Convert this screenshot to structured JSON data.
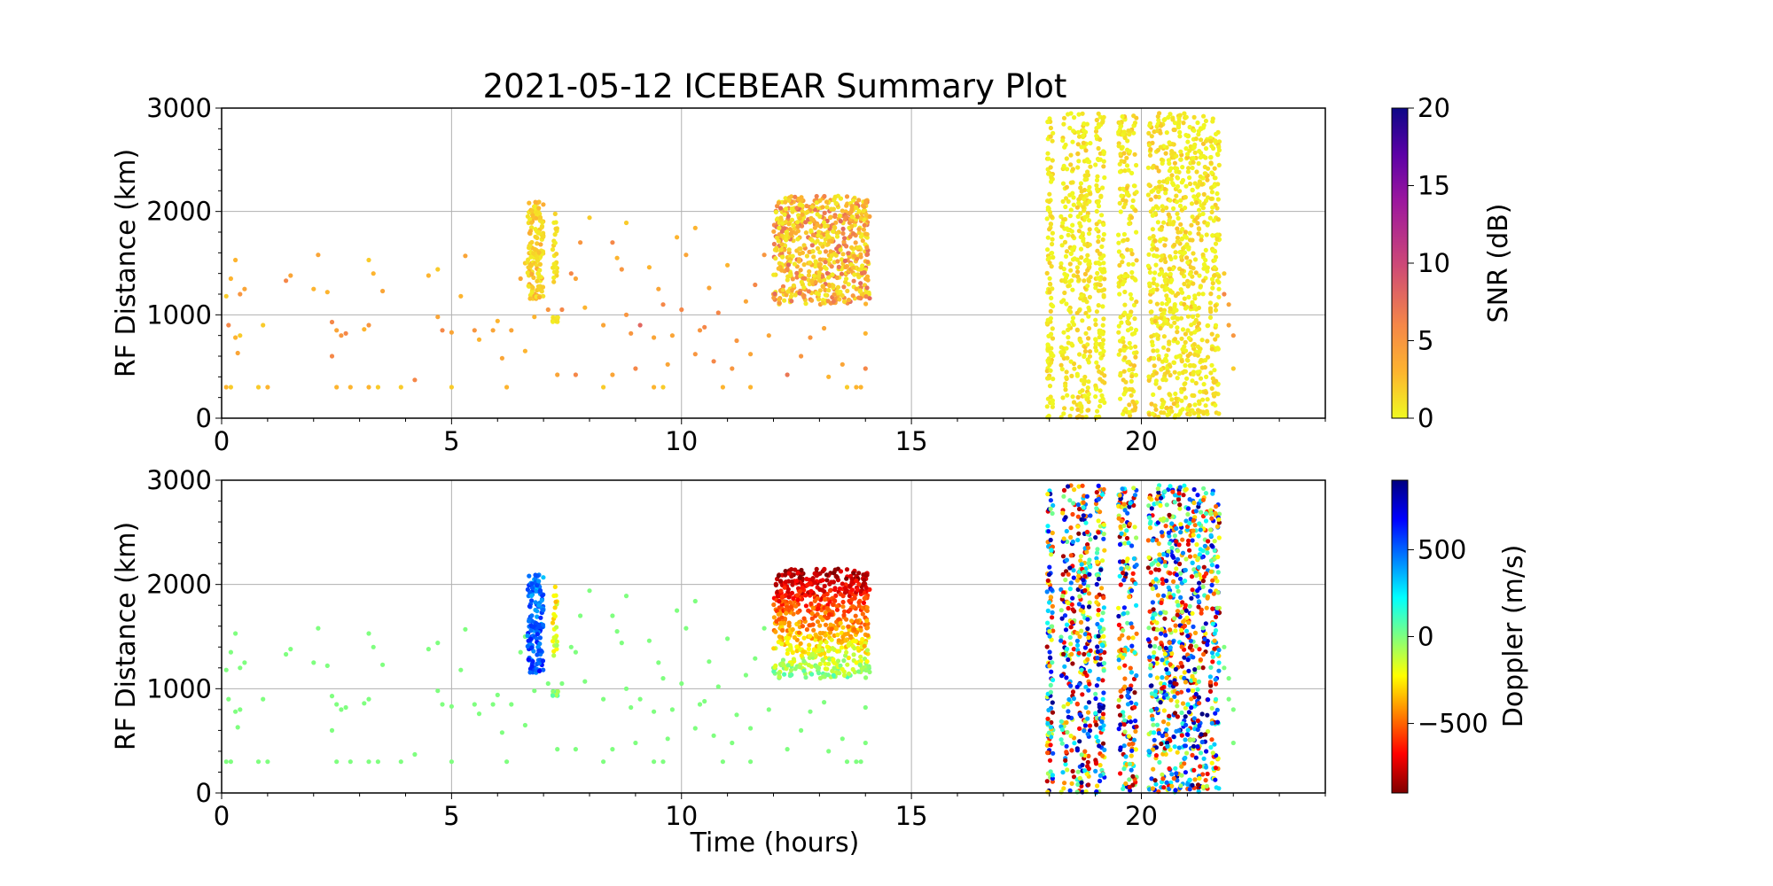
{
  "chart_data": [
    {
      "type": "scatter",
      "title": "2021-05-12 ICEBEAR Summary Plot",
      "xlabel": "",
      "ylabel": "RF Distance (km)",
      "xlim": [
        0,
        24
      ],
      "ylim": [
        0,
        3000
      ],
      "xticks": [
        0,
        5,
        10,
        15,
        20
      ],
      "yticks": [
        0,
        1000,
        2000,
        3000
      ],
      "grid": true,
      "color_by": "snr_db",
      "colorbar": {
        "label": "SNR (dB)",
        "range": [
          0,
          20
        ],
        "ticks": [
          0,
          5,
          10,
          15,
          20
        ],
        "colormap": "plasma_r"
      }
    },
    {
      "type": "scatter",
      "title": "",
      "xlabel": "Time (hours)",
      "ylabel": "RF Distance (km)",
      "xlim": [
        0,
        24
      ],
      "ylim": [
        0,
        3000
      ],
      "xticks": [
        0,
        5,
        10,
        15,
        20
      ],
      "yticks": [
        0,
        1000,
        2000,
        3000
      ],
      "grid": true,
      "color_by": "doppler_m_s",
      "colorbar": {
        "label": "Doppler (m/s)",
        "range": [
          -900,
          900
        ],
        "ticks": [
          -500,
          0,
          500
        ],
        "colormap": "jet_r"
      }
    }
  ],
  "observations": {
    "sparse_points_doppler_m_s": 0,
    "sparse_points": [
      [
        0.1,
        300,
        3
      ],
      [
        0.2,
        300,
        2
      ],
      [
        0.1,
        1180,
        2
      ],
      [
        0.15,
        900,
        6
      ],
      [
        0.2,
        1350,
        3
      ],
      [
        0.3,
        1530,
        3
      ],
      [
        0.4,
        1200,
        5
      ],
      [
        0.5,
        1250,
        4
      ],
      [
        0.3,
        780,
        3
      ],
      [
        0.35,
        630,
        4
      ],
      [
        0.4,
        800,
        2
      ],
      [
        0.8,
        300,
        2
      ],
      [
        1.0,
        300,
        3
      ],
      [
        0.9,
        900,
        2
      ],
      [
        1.4,
        1330,
        6
      ],
      [
        1.5,
        1380,
        4
      ],
      [
        2.0,
        1250,
        3
      ],
      [
        2.1,
        1580,
        4
      ],
      [
        2.3,
        1220,
        3
      ],
      [
        2.4,
        930,
        6
      ],
      [
        2.5,
        850,
        4
      ],
      [
        2.6,
        800,
        5
      ],
      [
        2.7,
        820,
        6
      ],
      [
        2.4,
        600,
        6
      ],
      [
        2.5,
        300,
        3
      ],
      [
        2.8,
        300,
        3
      ],
      [
        3.1,
        860,
        3
      ],
      [
        3.2,
        900,
        5
      ],
      [
        3.2,
        1530,
        2
      ],
      [
        3.3,
        1400,
        3
      ],
      [
        3.5,
        1230,
        4
      ],
      [
        3.2,
        300,
        3
      ],
      [
        3.4,
        300,
        2
      ],
      [
        3.9,
        300,
        2
      ],
      [
        4.2,
        370,
        6
      ],
      [
        4.5,
        1380,
        3
      ],
      [
        4.7,
        1440,
        2
      ],
      [
        4.7,
        980,
        4
      ],
      [
        4.8,
        850,
        6
      ],
      [
        5.0,
        830,
        4
      ],
      [
        5.0,
        300,
        2
      ],
      [
        5.3,
        1570,
        4
      ],
      [
        5.2,
        1180,
        3
      ],
      [
        5.5,
        850,
        5
      ],
      [
        5.6,
        760,
        3
      ],
      [
        5.9,
        850,
        4
      ],
      [
        6.0,
        940,
        3
      ],
      [
        6.1,
        580,
        4
      ],
      [
        6.2,
        300,
        3
      ],
      [
        6.3,
        850,
        4
      ],
      [
        6.5,
        1350,
        4
      ],
      [
        6.6,
        1500,
        2
      ],
      [
        6.6,
        650,
        3
      ],
      [
        7.1,
        1050,
        5
      ],
      [
        7.4,
        1050,
        6
      ],
      [
        7.6,
        1400,
        6
      ],
      [
        7.7,
        1350,
        4
      ],
      [
        7.8,
        1700,
        5
      ],
      [
        7.9,
        1070,
        3
      ],
      [
        8.0,
        1940,
        2
      ],
      [
        8.3,
        900,
        4
      ],
      [
        8.5,
        1700,
        6
      ],
      [
        8.6,
        1550,
        3
      ],
      [
        8.7,
        1440,
        5
      ],
      [
        8.8,
        1890,
        2
      ],
      [
        8.8,
        1000,
        5
      ],
      [
        9.1,
        900,
        8
      ],
      [
        9.3,
        1460,
        3
      ],
      [
        9.5,
        1250,
        4
      ],
      [
        9.6,
        1100,
        6
      ],
      [
        9.8,
        800,
        4
      ],
      [
        9.9,
        1750,
        3
      ],
      [
        10.0,
        1050,
        6
      ],
      [
        10.1,
        1580,
        4
      ],
      [
        10.3,
        1840,
        3
      ],
      [
        10.4,
        850,
        5
      ],
      [
        10.6,
        1260,
        4
      ],
      [
        10.8,
        1020,
        6
      ],
      [
        11.0,
        1480,
        3
      ],
      [
        11.2,
        750,
        5
      ],
      [
        11.4,
        1130,
        4
      ],
      [
        11.6,
        1290,
        6
      ],
      [
        11.8,
        1580,
        5
      ],
      [
        12.0,
        1200,
        4
      ],
      [
        8.3,
        300,
        2
      ],
      [
        9.4,
        300,
        3
      ],
      [
        9.6,
        300,
        2
      ],
      [
        10.9,
        300,
        3
      ],
      [
        11.5,
        300,
        3
      ],
      [
        13.6,
        300,
        2
      ],
      [
        13.8,
        300,
        3
      ],
      [
        13.9,
        300,
        3
      ],
      [
        8.5,
        420,
        4
      ],
      [
        9.0,
        480,
        6
      ],
      [
        9.7,
        520,
        4
      ],
      [
        10.3,
        620,
        5
      ],
      [
        10.7,
        550,
        6
      ],
      [
        11.1,
        480,
        5
      ],
      [
        11.5,
        620,
        4
      ],
      [
        12.3,
        420,
        7
      ],
      [
        12.6,
        600,
        5
      ],
      [
        13.2,
        400,
        3
      ],
      [
        13.5,
        520,
        4
      ],
      [
        14.0,
        480,
        6
      ],
      [
        14.0,
        820,
        3
      ],
      [
        13.1,
        870,
        4
      ],
      [
        12.8,
        780,
        5
      ],
      [
        11.9,
        800,
        4
      ],
      [
        10.5,
        880,
        6
      ],
      [
        9.4,
        780,
        4
      ],
      [
        8.9,
        820,
        5
      ],
      [
        7.3,
        420,
        4
      ],
      [
        7.7,
        420,
        6
      ],
      [
        6.8,
        980,
        3
      ],
      [
        7.3,
        960,
        2
      ],
      [
        7.2,
        940,
        2
      ],
      [
        21.8,
        1200,
        6
      ],
      [
        21.9,
        1100,
        4
      ],
      [
        22.0,
        800,
        5
      ],
      [
        21.9,
        900,
        4
      ],
      [
        22.0,
        480,
        2
      ],
      [
        21.8,
        1400,
        2
      ]
    ],
    "dense_regions": [
      {
        "t": [
          6.65,
          7.0
        ],
        "range_km": [
          1150,
          2100
        ],
        "count": 160,
        "snr_db": [
          0.5,
          4
        ],
        "doppler_top": 450,
        "doppler_bottom": 550
      },
      {
        "t": [
          7.2,
          7.3
        ],
        "range_km": [
          1300,
          2000
        ],
        "count": 25,
        "snr_db": [
          0.5,
          2
        ],
        "doppler_top": -250,
        "doppler_bottom": -150
      },
      {
        "t": [
          7.2,
          7.35
        ],
        "range_km": [
          930,
          980
        ],
        "count": 12,
        "snr_db": [
          0.5,
          1.5
        ],
        "doppler_top": 50,
        "doppler_bottom": 50
      },
      {
        "t": [
          12.0,
          14.1
        ],
        "range_km": [
          1100,
          2150
        ],
        "count": 700,
        "snr_db": [
          0.5,
          8
        ],
        "doppler_top": -850,
        "doppler_bottom": 0
      },
      {
        "t": [
          17.95,
          18.08
        ],
        "range_km": [
          0,
          2950
        ],
        "count": 110,
        "snr_db": [
          0,
          2
        ],
        "doppler_top": -900,
        "doppler_bottom": 900,
        "random_doppler": true
      },
      {
        "t": [
          18.25,
          18.55
        ],
        "range_km": [
          0,
          2950
        ],
        "count": 130,
        "snr_db": [
          0,
          2
        ],
        "doppler_top": -900,
        "doppler_bottom": 900,
        "random_doppler": true
      },
      {
        "t": [
          18.6,
          18.9
        ],
        "range_km": [
          0,
          2950
        ],
        "count": 180,
        "snr_db": [
          0,
          2.5
        ],
        "doppler_top": -900,
        "doppler_bottom": 900,
        "random_doppler": true
      },
      {
        "t": [
          19.0,
          19.2
        ],
        "range_km": [
          0,
          2950
        ],
        "count": 140,
        "snr_db": [
          0,
          2
        ],
        "doppler_top": -900,
        "doppler_bottom": 900,
        "random_doppler": true
      },
      {
        "t": [
          19.5,
          19.9
        ],
        "range_km": [
          0,
          2950
        ],
        "count": 200,
        "snr_db": [
          0,
          2.5
        ],
        "doppler_top": -900,
        "doppler_bottom": 900,
        "random_doppler": true
      },
      {
        "t": [
          20.15,
          20.95
        ],
        "range_km": [
          0,
          2950
        ],
        "count": 420,
        "snr_db": [
          0,
          2.5
        ],
        "doppler_top": -900,
        "doppler_bottom": 900,
        "random_doppler": true
      },
      {
        "t": [
          20.95,
          21.45
        ],
        "range_km": [
          0,
          2950
        ],
        "count": 260,
        "snr_db": [
          0,
          2.5
        ],
        "doppler_top": -900,
        "doppler_bottom": 900,
        "random_doppler": true
      },
      {
        "t": [
          21.5,
          21.7
        ],
        "range_km": [
          0,
          2950
        ],
        "count": 120,
        "snr_db": [
          0,
          2
        ],
        "doppler_top": -900,
        "doppler_bottom": 900,
        "random_doppler": true
      }
    ]
  }
}
